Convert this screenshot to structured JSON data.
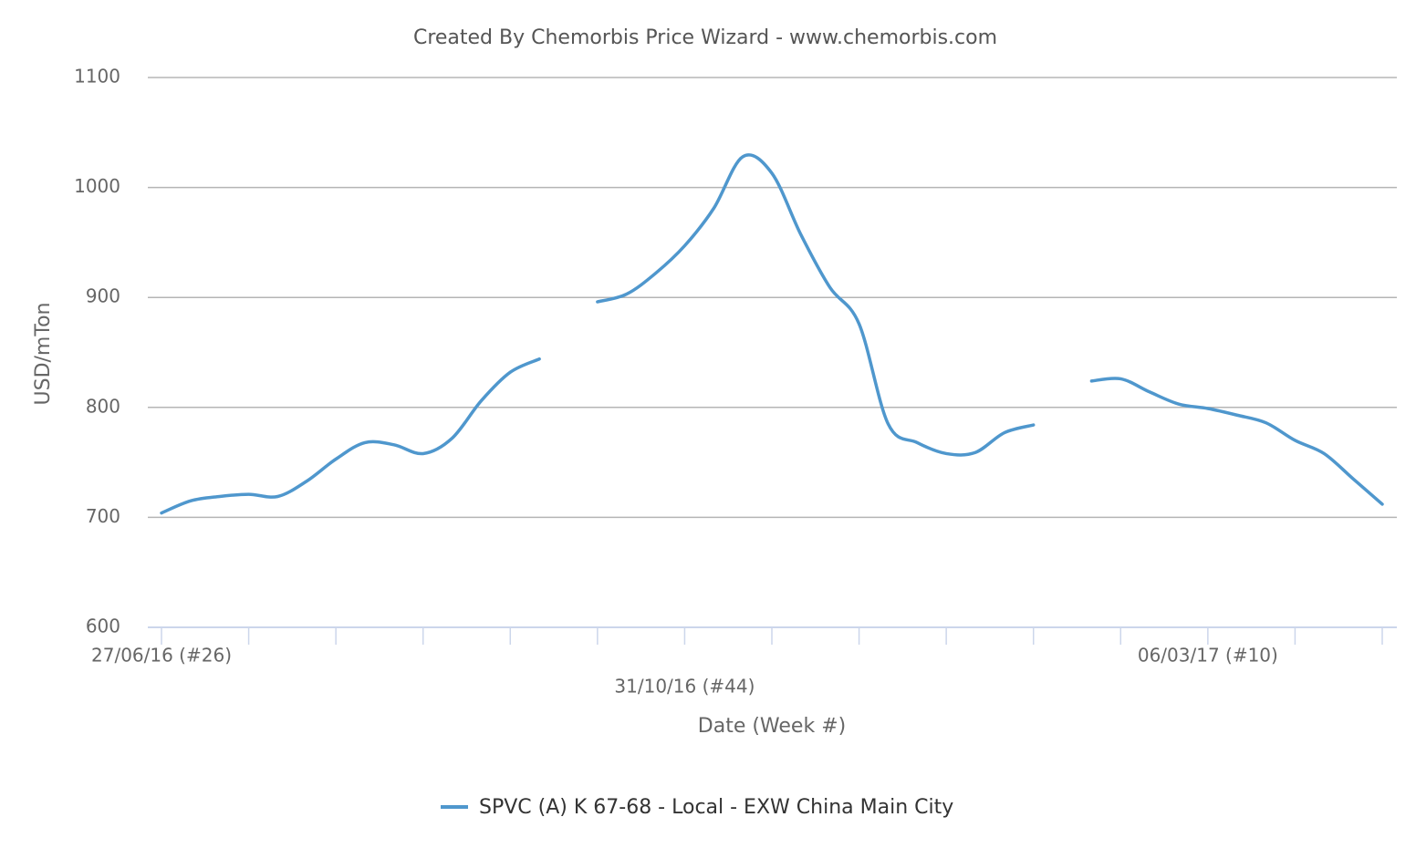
{
  "chart_data": {
    "type": "line",
    "title": "Created By Chemorbis Price Wizard - www.chemorbis.com",
    "y_label": "USD/mTon",
    "x_label": "Date (Week #)",
    "x": [
      "27/06/16 (#26)",
      null,
      null,
      null,
      null,
      null,
      null,
      null,
      null,
      null,
      null,
      null,
      null,
      null,
      null,
      null,
      null,
      null,
      "31/10/16 (#44)",
      null,
      null,
      null,
      null,
      null,
      null,
      null,
      null,
      null,
      null,
      null,
      null,
      null,
      null,
      null,
      null,
      null,
      "06/03/17 (#10)",
      null,
      null,
      null,
      null,
      null,
      null
    ],
    "series": [
      {
        "name": "SPVC (A) K 67-68 - Local - EXW China Main City",
        "color": "#4f97cd",
        "values": [
          704,
          715,
          719,
          721,
          719,
          733,
          753,
          768,
          766,
          758,
          772,
          806,
          832,
          844,
          null,
          896,
          903,
          922,
          947,
          981,
          1028,
          1013,
          957,
          909,
          876,
          785,
          768,
          758,
          759,
          777,
          784,
          null,
          824,
          826,
          814,
          803,
          799,
          793,
          786,
          770,
          758,
          735,
          712
        ]
      }
    ],
    "ylim": [
      600,
      1100
    ],
    "yticks": [
      600,
      700,
      800,
      900,
      1000,
      1100
    ],
    "grid": true,
    "legend": "bottom"
  }
}
